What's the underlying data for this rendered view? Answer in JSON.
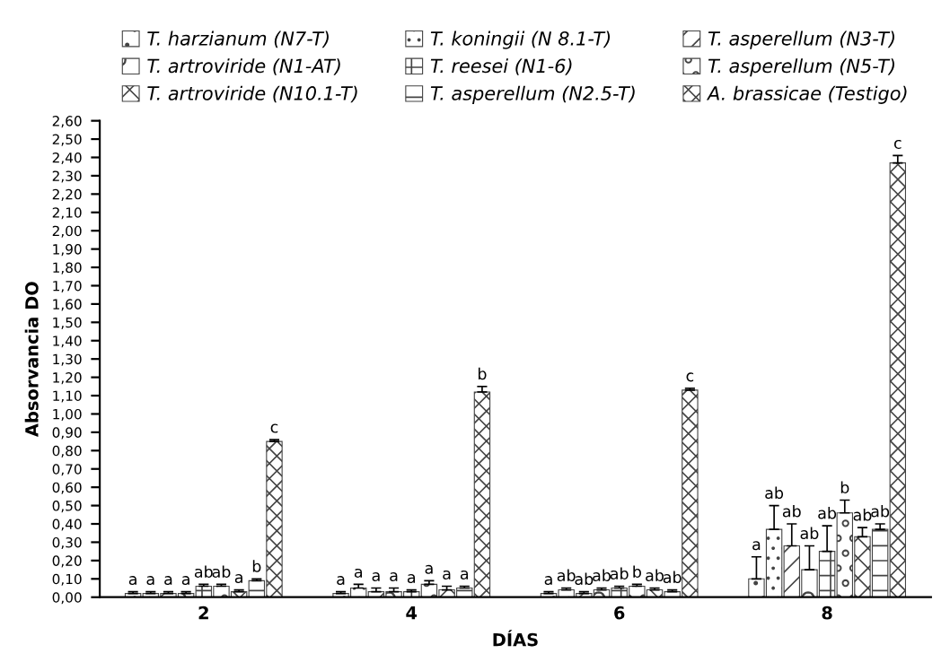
{
  "chart_data": {
    "type": "bar",
    "xlabel": "DÍAS",
    "ylabel": "Absorvancia DO",
    "categories": [
      "2",
      "4",
      "6",
      "8"
    ],
    "ylim": [
      0,
      2.6
    ],
    "yticks": [
      {
        "value": 0,
        "label": "0,00"
      },
      {
        "value": 0.1,
        "label": "0,10"
      },
      {
        "value": 0.2,
        "label": "0,20"
      },
      {
        "value": 0.3,
        "label": "0,30"
      },
      {
        "value": 0.4,
        "label": "0,40"
      },
      {
        "value": 0.5,
        "label": "0,50"
      },
      {
        "value": 0.6,
        "label": "0,60"
      },
      {
        "value": 0.7,
        "label": "0,70"
      },
      {
        "value": 0.8,
        "label": "0,80"
      },
      {
        "value": 0.9,
        "label": "0,90"
      },
      {
        "value": 1.0,
        "label": "1,00"
      },
      {
        "value": 1.1,
        "label": "1,10"
      },
      {
        "value": 1.2,
        "label": "1,20"
      },
      {
        "value": 1.3,
        "label": "1,30"
      },
      {
        "value": 1.4,
        "label": "1,40"
      },
      {
        "value": 1.5,
        "label": "1,50"
      },
      {
        "value": 1.6,
        "label": "1,60"
      },
      {
        "value": 1.7,
        "label": "1,70"
      },
      {
        "value": 1.8,
        "label": "1,80"
      },
      {
        "value": 1.9,
        "label": "1,90"
      },
      {
        "value": 2.0,
        "label": "2,00"
      },
      {
        "value": 2.1,
        "label": "2,10"
      },
      {
        "value": 2.2,
        "label": "2,20"
      },
      {
        "value": 2.3,
        "label": "2,30"
      },
      {
        "value": 2.4,
        "label": "2,40"
      },
      {
        "value": 2.5,
        "label": "2,50"
      },
      {
        "value": 2.6,
        "label": "2,60"
      }
    ],
    "legend": "top",
    "grid": false,
    "series": [
      {
        "name": "T. harzianum (N7-T)",
        "color": "#444444",
        "values": [
          0.02,
          0.02,
          0.02,
          0.1
        ],
        "errors": [
          0.01,
          0.01,
          0.01,
          0.12
        ],
        "value_labels": [
          "a",
          "a",
          "a",
          "a"
        ]
      },
      {
        "name": "T. koningii (N 8.1-T)",
        "color": "#444444",
        "values": [
          0.02,
          0.05,
          0.04,
          0.37
        ],
        "errors": [
          0.01,
          0.02,
          0.01,
          0.13
        ],
        "value_labels": [
          "a",
          "a",
          "ab",
          "ab"
        ]
      },
      {
        "name": "T. asperellum (N3-T)",
        "color": "#444444",
        "values": [
          0.02,
          0.03,
          0.02,
          0.28
        ],
        "errors": [
          0.01,
          0.02,
          0.01,
          0.12
        ],
        "value_labels": [
          "a",
          "a",
          "ab",
          "ab"
        ]
      },
      {
        "name": "T. artroviride (N1-AT)",
        "color": "#444444",
        "values": [
          0.02,
          0.03,
          0.04,
          0.15
        ],
        "errors": [
          0.01,
          0.02,
          0.01,
          0.13
        ],
        "value_labels": [
          "a",
          "a",
          "ab",
          "ab"
        ]
      },
      {
        "name": "T. reesei (N1-6)",
        "color": "#444444",
        "values": [
          0.06,
          0.03,
          0.05,
          0.25
        ],
        "errors": [
          0.01,
          0.01,
          0.01,
          0.14
        ],
        "value_labels": [
          "ab",
          "a",
          "ab",
          "ab"
        ]
      },
      {
        "name": "T. asperellum (N5-T)",
        "color": "#444444",
        "values": [
          0.06,
          0.07,
          0.06,
          0.46
        ],
        "errors": [
          0.01,
          0.02,
          0.01,
          0.07
        ],
        "value_labels": [
          "ab",
          "a",
          "b",
          "b"
        ]
      },
      {
        "name": "T. artroviride (N10.1-T)",
        "color": "#444444",
        "values": [
          0.03,
          0.04,
          0.04,
          0.33
        ],
        "errors": [
          0.01,
          0.02,
          0.01,
          0.05
        ],
        "value_labels": [
          "a",
          "a",
          "ab",
          "ab"
        ]
      },
      {
        "name": "T. asperellum (N2.5-T)",
        "color": "#444444",
        "values": [
          0.09,
          0.05,
          0.03,
          0.37
        ],
        "errors": [
          0.01,
          0.01,
          0.01,
          0.03
        ],
        "value_labels": [
          "b",
          "a",
          "ab",
          "ab"
        ]
      },
      {
        "name": "A. brassicae (Testigo)",
        "color": "#444444",
        "values": [
          0.85,
          1.12,
          1.13,
          2.37
        ],
        "errors": [
          0.01,
          0.03,
          0.01,
          0.04
        ],
        "value_labels": [
          "c",
          "b",
          "c",
          "c"
        ]
      }
    ]
  }
}
